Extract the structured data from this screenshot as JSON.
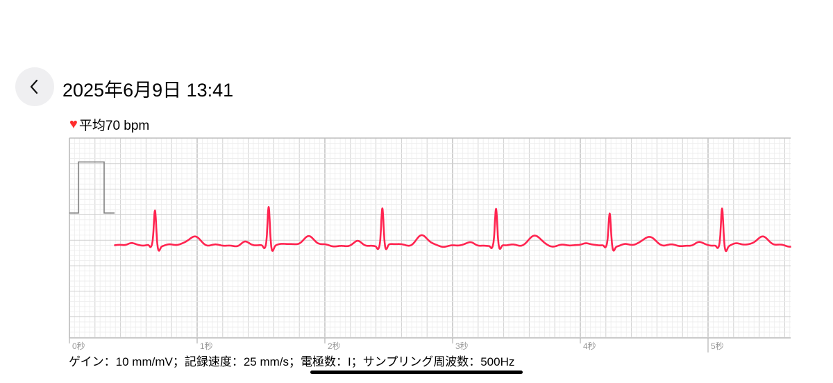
{
  "header": {
    "title": "2025年6月9日 13:41",
    "back_icon": "chevron-left-icon"
  },
  "summary": {
    "heart_icon": "heart-icon",
    "average": "平均70 bpm"
  },
  "footer": {
    "info": "ゲイン：10 mm/mV；記録速度：25 mm/s；電極数：I；サンプリング周波数：500Hz"
  },
  "chart_data": {
    "type": "line",
    "x_unit": "秒",
    "xlim": [
      0,
      5.65
    ],
    "tick_labels": [
      "0秒",
      "1秒",
      "2秒",
      "3秒",
      "4秒",
      "5秒"
    ],
    "gain_mm_per_mV": 10,
    "speed_mm_per_s": 25,
    "trace_start_s": 0.35,
    "r_peak_times_s": [
      0.67,
      1.56,
      2.45,
      3.34,
      4.23,
      5.11
    ],
    "r_peak_amplitudes_mV": [
      0.68,
      0.78,
      0.74,
      0.7,
      0.62,
      0.74
    ],
    "t_wave_amplitude_mV": 0.19,
    "p_wave_amplitude_mV": 0.07,
    "calibration_pulse_mV": 1,
    "grid": true,
    "colors": {
      "trace": "#ff2450",
      "grid_minor": "#ececec",
      "grid_major": "#d0d0d0",
      "grid_second": "#bdbdbd",
      "calibration": "#808080"
    }
  }
}
